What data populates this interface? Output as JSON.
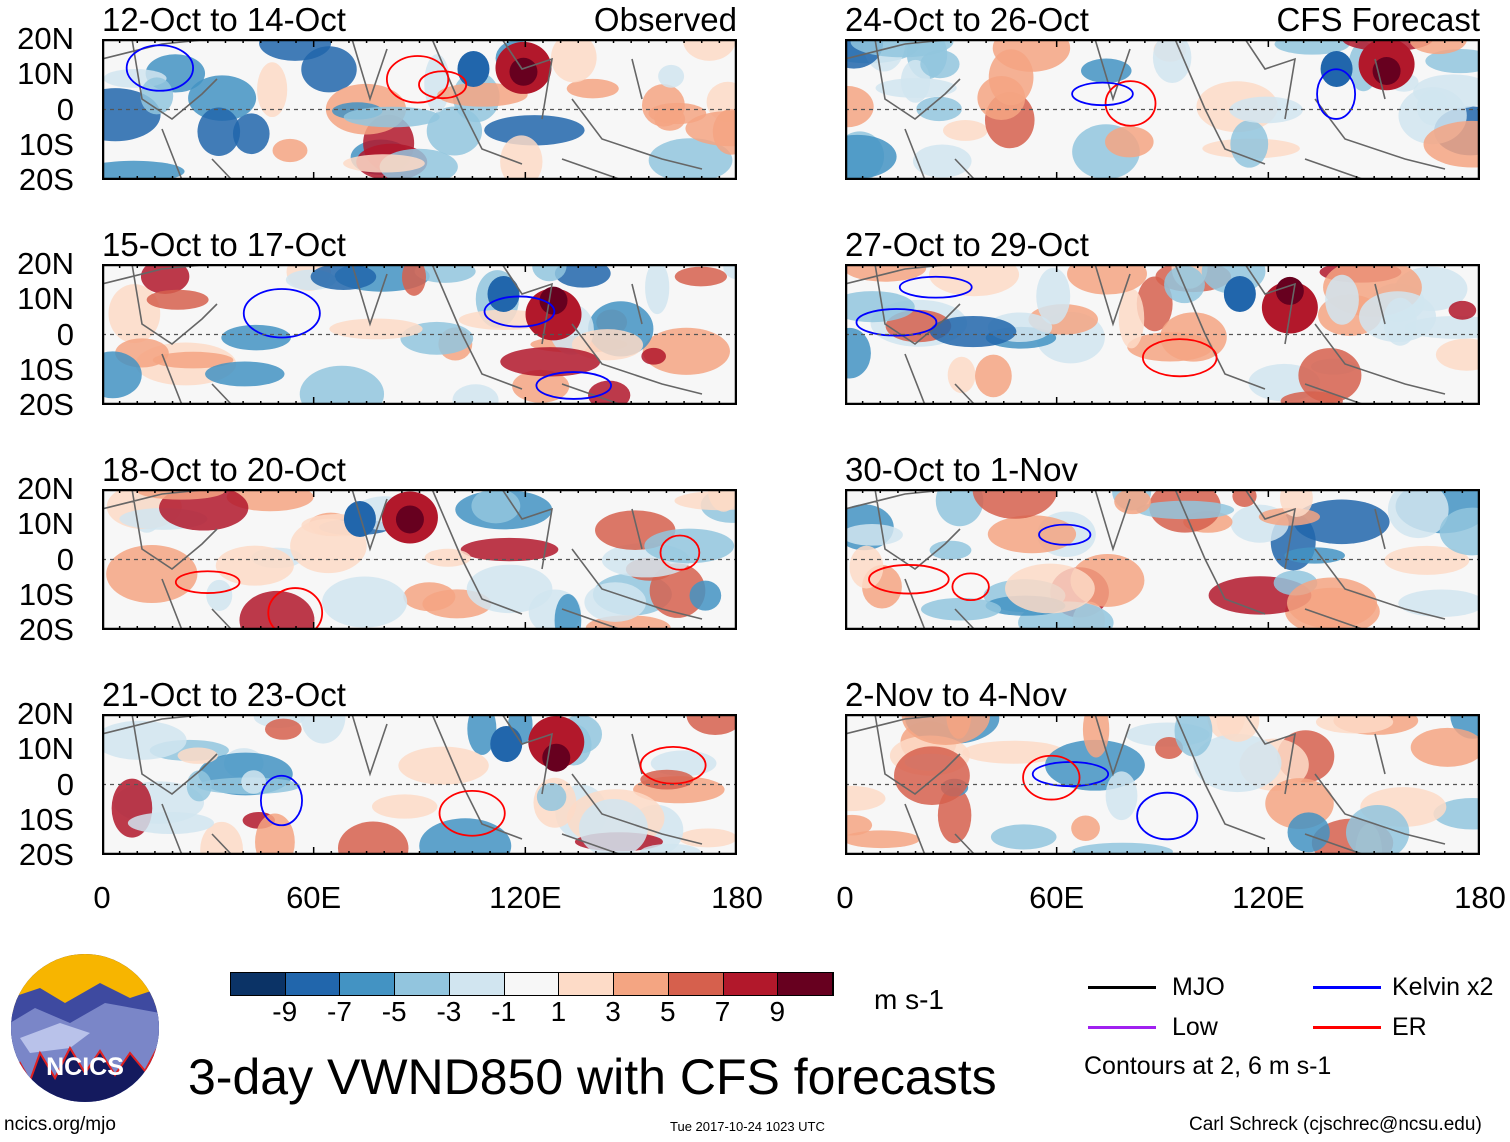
{
  "figure_title": "3-day VWND850 with CFS forecasts",
  "panels": [
    {
      "title": "12-Oct to 14-Oct",
      "tag": "Observed"
    },
    {
      "title": "15-Oct to 17-Oct",
      "tag": ""
    },
    {
      "title": "18-Oct to 20-Oct",
      "tag": ""
    },
    {
      "title": "21-Oct to 23-Oct",
      "tag": ""
    },
    {
      "title": "24-Oct to 26-Oct",
      "tag": "CFS Forecast"
    },
    {
      "title": "27-Oct to 29-Oct",
      "tag": ""
    },
    {
      "title": "30-Oct to 1-Nov",
      "tag": ""
    },
    {
      "title": "2-Nov to 4-Nov",
      "tag": ""
    }
  ],
  "y_ticks": [
    "20N",
    "10N",
    "0",
    "10S",
    "20S"
  ],
  "x_ticks": [
    "0",
    "60E",
    "120E",
    "180"
  ],
  "colorbar": {
    "colors": [
      "#0b3366",
      "#2166ac",
      "#4393c3",
      "#92c5de",
      "#d1e5f0",
      "#f7f7f7",
      "#fddbc7",
      "#f4a582",
      "#d6604d",
      "#b2182b",
      "#67001f"
    ],
    "labels": [
      "-9",
      "-7",
      "-5",
      "-3",
      "-1",
      "1",
      "3",
      "5",
      "7",
      "9"
    ],
    "units": "m s-1"
  },
  "legend": {
    "items": [
      {
        "label": "MJO",
        "color": "#000000"
      },
      {
        "label": "Kelvin x2",
        "color": "#0000ff"
      },
      {
        "label": "Low",
        "color": "#a020f0"
      },
      {
        "label": "ER",
        "color": "#ff0000"
      }
    ],
    "note": "Contours at 2, 6 m s-1"
  },
  "logo_text": "NCICS",
  "footer": {
    "left": "ncics.org/mjo",
    "center": "Tue 2017-10-24 1023 UTC",
    "right": "Carl Schreck (cjschrec@ncsu.edu)"
  }
}
